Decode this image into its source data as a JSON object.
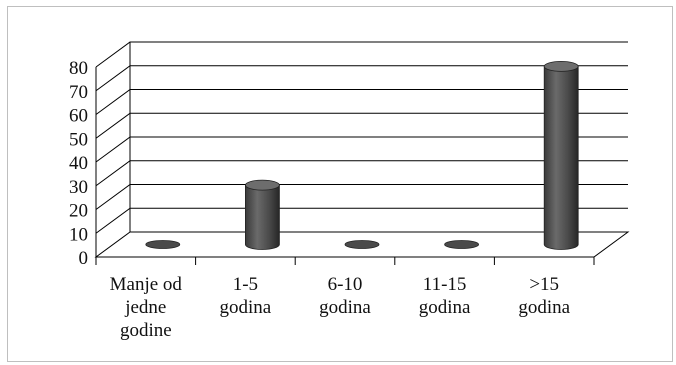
{
  "chart_data": {
    "type": "bar",
    "style": "3d-cylinder",
    "categories": [
      [
        "Manje od",
        "jedne",
        "godine"
      ],
      [
        "1-5",
        "godina"
      ],
      [
        "6-10",
        "godina"
      ],
      [
        "11-15",
        "godina"
      ],
      [
        ">15",
        "godina"
      ]
    ],
    "values": [
      0,
      25,
      0,
      0,
      75
    ],
    "ylim": [
      0,
      80
    ],
    "yticks": [
      0,
      10,
      20,
      30,
      40,
      50,
      60,
      70,
      80
    ],
    "grid": true,
    "legend": "none",
    "colors": {
      "bar": "#595959",
      "bar_dark": "#2e2e2e",
      "grid": "#000000"
    }
  }
}
